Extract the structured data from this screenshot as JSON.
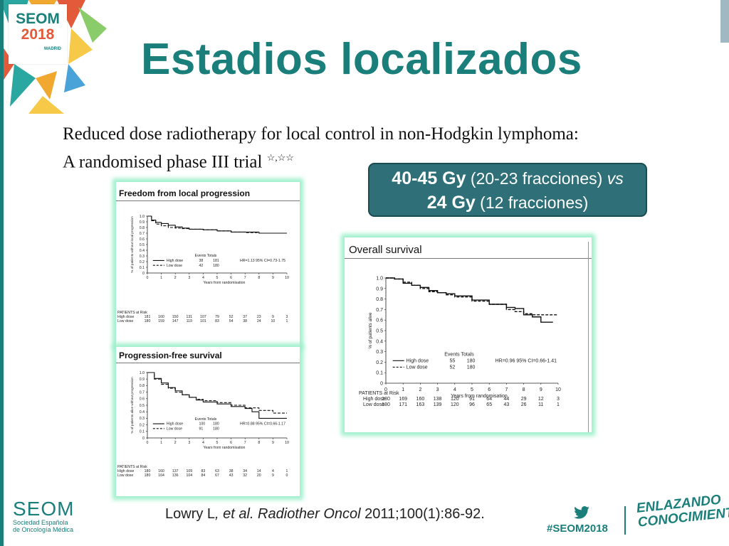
{
  "slide": {
    "title": "Estadios localizados",
    "logo_top": {
      "line1": "SEOM",
      "line2": "2018",
      "line3": "MADRID"
    },
    "paper_title_line1": "Reduced dose radiotherapy for local control in non-Hodgkin lymphoma:",
    "paper_title_line2": "A randomised phase III trial",
    "paper_title_marks": "☆,☆☆",
    "dose_box": {
      "line1_bold": "40-45 Gy",
      "line1_rest_a": " (20-23 fracciones) ",
      "line1_italic": "vs",
      "line2_bold": "24 Gy",
      "line2_rest": " (12 fracciones)"
    },
    "reference": {
      "authors": "Lowry L",
      "etal": ", et al. Radiother Oncol",
      "rest": " 2011;100(1):86-92."
    },
    "footer": {
      "seom_name": "SEOM",
      "seom_sub1": "Sociedad Española",
      "seom_sub2": "de Oncología Médica",
      "hashtag": "#SEOM2018",
      "tagline1": "ENLAZANDO",
      "tagline2": "CONOCIMIENTO",
      "twitter_icon": "twitter-bird-icon"
    },
    "colors": {
      "teal": "#1a7f7a",
      "box": "#2e6f78",
      "glow": "#9ff0cc"
    }
  },
  "chart_data": [
    {
      "type": "line",
      "title": "Freedom from local progression",
      "xlabel": "Years from randomisation",
      "ylabel": "% of patients without local progression",
      "xlim": [
        0,
        10
      ],
      "ylim": [
        0,
        1.0
      ],
      "xticks": [
        "0",
        "1",
        "2",
        "3",
        "4",
        "5",
        "6",
        "7",
        "8",
        "9",
        "10"
      ],
      "yticks": [
        "0",
        "0.1",
        "0.2",
        "0.3",
        "0.4",
        "0.5",
        "0.6",
        "0.7",
        "0.8",
        "0.9",
        "1.0"
      ],
      "legend": {
        "header": "Events Totals",
        "hr": "HR=1.13 95% CI=0.73-1.75"
      },
      "series": [
        {
          "name": "High dose",
          "style": "solid",
          "events": "38",
          "totals": "181",
          "x": [
            0,
            0.3,
            0.6,
            1,
            1.5,
            2,
            2.5,
            3,
            4,
            5,
            6,
            7,
            8,
            9,
            10
          ],
          "y": [
            1.0,
            0.93,
            0.89,
            0.87,
            0.84,
            0.81,
            0.79,
            0.77,
            0.76,
            0.74,
            0.72,
            0.72,
            0.7,
            0.7,
            0.7
          ]
        },
        {
          "name": "Low dose",
          "style": "dashed",
          "events": "42",
          "totals": "180",
          "x": [
            0,
            0.3,
            0.6,
            1,
            1.5,
            2,
            2.5,
            3,
            4,
            5,
            6,
            7,
            8,
            9,
            10
          ],
          "y": [
            1.0,
            0.92,
            0.86,
            0.83,
            0.8,
            0.79,
            0.78,
            0.77,
            0.76,
            0.74,
            0.72,
            0.71,
            0.7,
            0.7,
            0.7
          ]
        }
      ],
      "risk_table": {
        "header": "PATIENTS at Risk",
        "rows": [
          {
            "label": "High dose",
            "values": [
              "181",
              "160",
              "150",
              "131",
              "107",
              "79",
              "52",
              "37",
              "23",
              "9",
              "3"
            ]
          },
          {
            "label": "Low dose",
            "values": [
              "180",
              "159",
              "147",
              "119",
              "101",
              "83",
              "54",
              "38",
              "24",
              "10",
              "1"
            ]
          }
        ]
      }
    },
    {
      "type": "line",
      "title": "Progression-free survival",
      "xlabel": "Years from randomisation",
      "ylabel": "% of patients alive without progression",
      "xlim": [
        0,
        10
      ],
      "ylim": [
        0,
        1.0
      ],
      "xticks": [
        "0",
        "1",
        "2",
        "3",
        "4",
        "5",
        "6",
        "7",
        "8",
        "9",
        "10"
      ],
      "yticks": [
        "0",
        "0.1",
        "0.2",
        "0.3",
        "0.4",
        "0.5",
        "0.6",
        "0.7",
        "0.8",
        "0.9",
        "1.0"
      ],
      "legend": {
        "header": "Events Totals",
        "hr": "HR=0.88 95% CI=0.66-1.17"
      },
      "series": [
        {
          "name": "High dose",
          "style": "solid",
          "events": "100",
          "totals": "180",
          "x": [
            0,
            0.5,
            1,
            1.5,
            2,
            2.5,
            3,
            3.5,
            4,
            5,
            6,
            7,
            7.5,
            8,
            9,
            10
          ],
          "y": [
            1.0,
            0.91,
            0.84,
            0.77,
            0.72,
            0.66,
            0.62,
            0.58,
            0.55,
            0.52,
            0.48,
            0.45,
            0.4,
            0.3,
            0.3,
            0.3
          ]
        },
        {
          "name": "Low dose",
          "style": "dashed",
          "events": "91",
          "totals": "180",
          "x": [
            0,
            0.5,
            1,
            1.5,
            2,
            2.5,
            3,
            3.5,
            4,
            5,
            6,
            7,
            7.5,
            8,
            9,
            10
          ],
          "y": [
            1.0,
            0.9,
            0.82,
            0.76,
            0.7,
            0.66,
            0.62,
            0.59,
            0.57,
            0.54,
            0.5,
            0.46,
            0.46,
            0.42,
            0.38,
            0.38
          ]
        }
      ],
      "risk_table": {
        "header": "PATIENTS at Risk",
        "rows": [
          {
            "label": "High dose",
            "values": [
              "180",
              "160",
              "137",
              "109",
              "83",
              "63",
              "38",
              "34",
              "14",
              "4",
              "1"
            ]
          },
          {
            "label": "Low dose",
            "values": [
              "180",
              "164",
              "136",
              "104",
              "84",
              "67",
              "43",
              "32",
              "20",
              "9",
              "0"
            ]
          }
        ]
      }
    },
    {
      "type": "line",
      "title": "Overall survival",
      "xlabel": "Years from randomisation",
      "ylabel": "% of patients alive",
      "xlim": [
        0,
        10
      ],
      "ylim": [
        0,
        1.0
      ],
      "xticks": [
        "0",
        "1",
        "2",
        "3",
        "4",
        "5",
        "6",
        "7",
        "8",
        "9",
        "10"
      ],
      "yticks": [
        "0",
        "0.1",
        "0.2",
        "0.3",
        "0.4",
        "0.5",
        "0.6",
        "0.7",
        "0.8",
        "0.9",
        "1.0"
      ],
      "legend": {
        "header": "Events Totals",
        "hr": "HR=0.96 95% CI=0.66-1.41"
      },
      "series": [
        {
          "name": "High dose",
          "style": "solid",
          "events": "55",
          "totals": "180",
          "x": [
            0,
            0.5,
            1,
            1.5,
            2,
            2.5,
            3,
            3.5,
            4,
            5,
            6,
            7,
            7.5,
            8,
            8.5,
            9,
            9.7
          ],
          "y": [
            1.0,
            0.99,
            0.95,
            0.93,
            0.91,
            0.88,
            0.86,
            0.85,
            0.83,
            0.79,
            0.75,
            0.72,
            0.71,
            0.65,
            0.63,
            0.58,
            0.58
          ]
        },
        {
          "name": "Low dose",
          "style": "dashed",
          "events": "52",
          "totals": "180",
          "x": [
            0,
            0.5,
            1,
            1.5,
            2,
            2.5,
            3,
            3.5,
            4,
            5,
            6,
            7,
            7.5,
            8,
            8.5,
            9,
            10
          ],
          "y": [
            1.0,
            0.99,
            0.96,
            0.93,
            0.9,
            0.87,
            0.86,
            0.84,
            0.82,
            0.78,
            0.75,
            0.7,
            0.68,
            0.66,
            0.65,
            0.65,
            0.65
          ]
        }
      ],
      "risk_table": {
        "header": "PATIENTS at Risk",
        "rows": [
          {
            "label": "High dose",
            "values": [
              "180",
              "169",
              "160",
              "138",
              "120",
              "91",
              "64",
              "44",
              "29",
              "12",
              "3"
            ]
          },
          {
            "label": "Low dose",
            "values": [
              "180",
              "171",
              "163",
              "139",
              "120",
              "96",
              "65",
              "43",
              "26",
              "11",
              "1"
            ]
          }
        ]
      }
    }
  ]
}
